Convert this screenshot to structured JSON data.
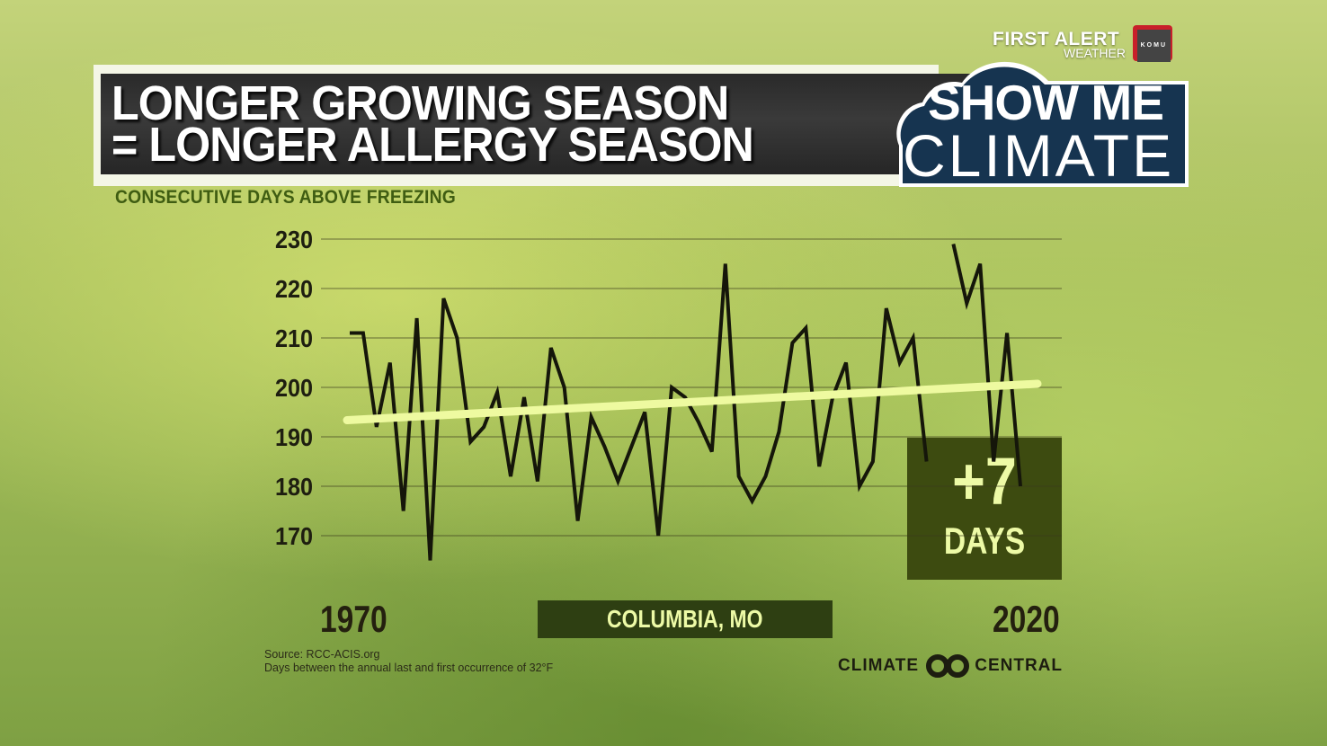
{
  "branding": {
    "station_line1": "FIRST ALERT",
    "station_line2": "WEATHER",
    "logo_number": "8",
    "logo_call": "KOMU"
  },
  "header": {
    "title_line1": "LONGER GROWING SEASON",
    "title_line2": "= LONGER ALLERGY SEASON",
    "segment_line1": "SHOW ME",
    "segment_line2": "CLIMATE"
  },
  "callout": {
    "value": "+7",
    "unit": "DAYS"
  },
  "location_label": "COLUMBIA, MO",
  "footer": {
    "source": "Source: RCC-ACIS.org",
    "note": "Days between the annual last and first occurrence of 32°F",
    "credit_left": "CLIMATE",
    "credit_right": "CENTRAL"
  },
  "colors": {
    "line": "#15160a",
    "trend": "#eefaa0",
    "subtitle": "#3f5d12",
    "callout_bg": "#3d4b10",
    "label_bg": "#2e3f12",
    "segment_bg": "#163450"
  },
  "chart_data": {
    "type": "line",
    "title": "CONSECUTIVE DAYS ABOVE FREEZING",
    "subtitle": "Columbia, MO",
    "xlabel": "",
    "ylabel": "",
    "x_tick_labels": [
      "1970",
      "2020"
    ],
    "y_ticks": [
      230,
      220,
      210,
      200,
      190,
      180,
      170
    ],
    "ylim": [
      165,
      230
    ],
    "grid": true,
    "legend": "none",
    "x": [
      1970,
      1971,
      1972,
      1973,
      1974,
      1975,
      1976,
      1977,
      1978,
      1979,
      1980,
      1981,
      1982,
      1983,
      1984,
      1985,
      1986,
      1987,
      1988,
      1989,
      1990,
      1991,
      1992,
      1993,
      1994,
      1995,
      1996,
      1997,
      1998,
      1999,
      2000,
      2001,
      2002,
      2003,
      2004,
      2005,
      2006,
      2007,
      2008,
      2009,
      2010,
      2011,
      2012,
      2013,
      2014,
      2015,
      2016,
      2017,
      2018,
      2019,
      2020
    ],
    "series": [
      {
        "name": "Consecutive days above freezing",
        "values": [
          211,
          211,
          192,
          205,
          175,
          214,
          165,
          218,
          210,
          189,
          192,
          199,
          182,
          198,
          181,
          208,
          200,
          173,
          194,
          188,
          181,
          188,
          195,
          170,
          200,
          198,
          193,
          187,
          225,
          182,
          177,
          182,
          191,
          209,
          212,
          184,
          198,
          205,
          180,
          185,
          216,
          205,
          210,
          185,
          null,
          229,
          217,
          225,
          185,
          211,
          180
        ]
      },
      {
        "name": "Trend",
        "values_endpoints": {
          "1970": 193,
          "2020": 200
        }
      }
    ],
    "annotations": [
      "+7 DAYS",
      "Source: RCC-ACIS.org",
      "Days between the annual last and first occurrence of 32°F"
    ]
  }
}
